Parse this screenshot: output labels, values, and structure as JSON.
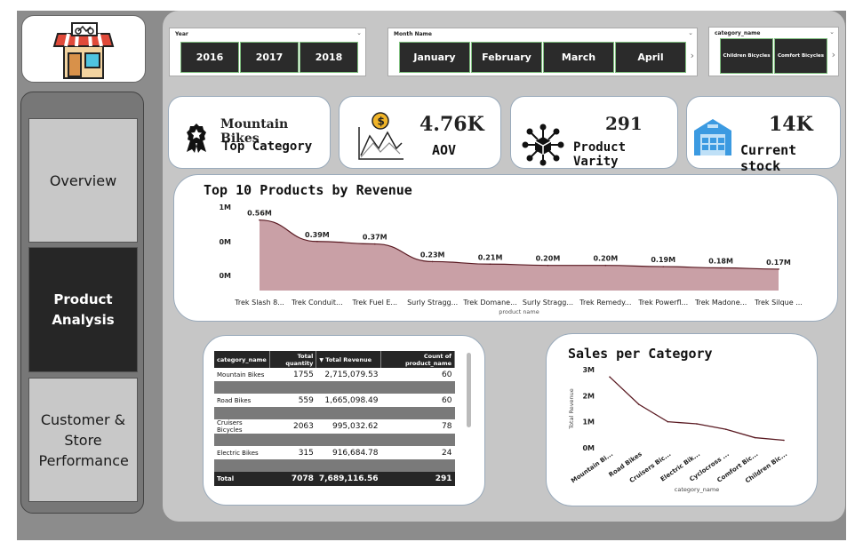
{
  "slicers": {
    "year": {
      "title": "Year",
      "options": [
        "2016",
        "2017",
        "2018"
      ]
    },
    "month": {
      "title": "Month Name",
      "options": [
        "January",
        "February",
        "March",
        "April"
      ]
    },
    "category": {
      "title": "category_name",
      "options": [
        "Children Bicycles",
        "Comfort Bicycles"
      ]
    }
  },
  "nav": {
    "items": [
      {
        "label": "Overview",
        "active": false
      },
      {
        "label": "Product Analysis",
        "active": true
      },
      {
        "label": "Customer & Store Performance",
        "active": false
      }
    ]
  },
  "kpis": [
    {
      "value": "Mountain Bikes",
      "label": "Top Category",
      "icon": "award-ribbon-icon"
    },
    {
      "value": "4.76K",
      "label": "AOV",
      "icon": "dollar-chart-icon"
    },
    {
      "value": "291",
      "label": "Product Varity",
      "icon": "network-box-icon"
    },
    {
      "value": "14K",
      "label": "Current stock",
      "icon": "warehouse-icon"
    }
  ],
  "colors": {
    "area_fill": "#c9a0a6",
    "line": "#5a1a22",
    "dark": "#262626",
    "frame": "#8c8c8c"
  },
  "chart_data": [
    {
      "type": "area",
      "title": "Top 10 Products by Revenue",
      "xlabel": "product name",
      "ylabel": "",
      "categories": [
        "Trek Slash 8...",
        "Trek Conduit...",
        "Trek Fuel E...",
        "Surly Stragg...",
        "Trek Domane...",
        "Surly Stragg...",
        "Trek Remedy...",
        "Trek Powerfl...",
        "Trek Madone...",
        "Trek Silque ..."
      ],
      "values": [
        0.56,
        0.39,
        0.37,
        0.23,
        0.21,
        0.2,
        0.2,
        0.19,
        0.18,
        0.17
      ],
      "data_labels": [
        "0.56M",
        "0.39M",
        "0.37M",
        "0.23M",
        "0.21M",
        "0.20M",
        "0.20M",
        "0.19M",
        "0.18M",
        "0.17M"
      ],
      "y_ticks": [
        "1M",
        "0M",
        "0M"
      ],
      "ylim": [
        0,
        0.6
      ]
    },
    {
      "type": "line",
      "title": "Sales per Category",
      "xlabel": "category_name",
      "ylabel": "Total Revenue",
      "categories": [
        "Mountain Bi...",
        "Road Bikes",
        "Cruisers Bic...",
        "Electric Bik...",
        "Cyclocross ...",
        "Comfort Bic...",
        "Children Bic..."
      ],
      "values": [
        2.72,
        1.67,
        1.0,
        0.92,
        0.71,
        0.39,
        0.29
      ],
      "y_ticks": [
        "3M",
        "2M",
        "1M",
        "0M"
      ],
      "ylim": [
        0,
        3
      ]
    }
  ],
  "table": {
    "headers": [
      "category_name",
      "Total quantity",
      "Total Revenue",
      "Count of product_name"
    ],
    "rows": [
      [
        "Mountain Bikes",
        "1755",
        "2,715,079.53",
        "60"
      ],
      [
        "Road Bikes",
        "559",
        "1,665,098.49",
        "60"
      ],
      [
        "Cruisers Bicycles",
        "2063",
        "995,032.62",
        "78"
      ],
      [
        "Electric Bikes",
        "315",
        "916,684.78",
        "24"
      ]
    ],
    "total": [
      "Total",
      "7078",
      "7,689,116.56",
      "291"
    ]
  }
}
